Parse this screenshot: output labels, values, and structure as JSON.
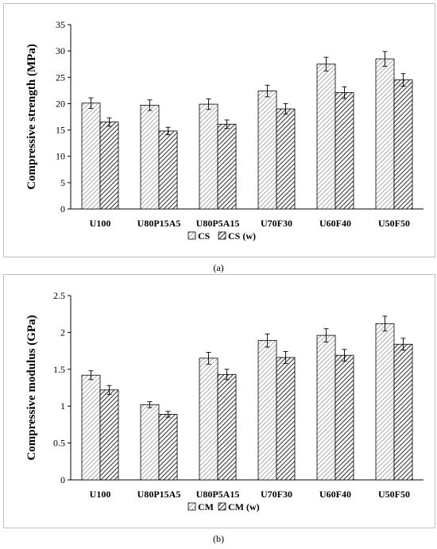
{
  "panels": [
    {
      "caption": "(a)",
      "chart_data": {
        "type": "bar",
        "title": "",
        "xlabel": "",
        "ylabel": "Compressive strength (MPa)",
        "ylim": [
          0,
          35
        ],
        "yticks": [
          0,
          5,
          10,
          15,
          20,
          25,
          30,
          35
        ],
        "categories": [
          "U100",
          "U80P15A5",
          "U80P5A15",
          "U70F30",
          "U60F40",
          "U50F50"
        ],
        "series": [
          {
            "name": "CS",
            "values": [
              20.1,
              19.7,
              19.9,
              22.4,
              27.5,
              28.5
            ],
            "errors": [
              1.0,
              1.0,
              1.0,
              1.1,
              1.3,
              1.4
            ],
            "pattern": "light"
          },
          {
            "name": "CS (w)",
            "values": [
              16.5,
              14.8,
              16.1,
              19.0,
              22.1,
              24.5
            ],
            "errors": [
              0.8,
              0.7,
              0.8,
              1.0,
              1.1,
              1.2
            ],
            "pattern": "dark"
          }
        ],
        "grid": false,
        "legend": "bottom-center"
      }
    },
    {
      "caption": "(b)",
      "chart_data": {
        "type": "bar",
        "title": "",
        "xlabel": "",
        "ylabel": "Compressive modulus (GPa)",
        "ylim": [
          0,
          2.5
        ],
        "yticks": [
          0,
          0.5,
          1,
          1.5,
          2,
          2.5
        ],
        "categories": [
          "U100",
          "U80P15A5",
          "U80P5A15",
          "U70F30",
          "U60F40",
          "U50F50"
        ],
        "series": [
          {
            "name": "CM",
            "values": [
              1.42,
              1.02,
              1.65,
              1.89,
              1.96,
              2.12
            ],
            "errors": [
              0.06,
              0.04,
              0.08,
              0.09,
              0.09,
              0.1
            ],
            "pattern": "light"
          },
          {
            "name": "CM (w)",
            "values": [
              1.22,
              0.89,
              1.43,
              1.66,
              1.69,
              1.84
            ],
            "errors": [
              0.06,
              0.04,
              0.07,
              0.08,
              0.08,
              0.08
            ],
            "pattern": "dark"
          }
        ],
        "grid": false,
        "legend": "bottom-center"
      }
    }
  ],
  "colors": {
    "bar_fill": "#ffffff",
    "hatch_light": "#7f7f7f",
    "hatch_dark": "#404040",
    "axis": "#000000",
    "frame": "#bfbfbf"
  }
}
